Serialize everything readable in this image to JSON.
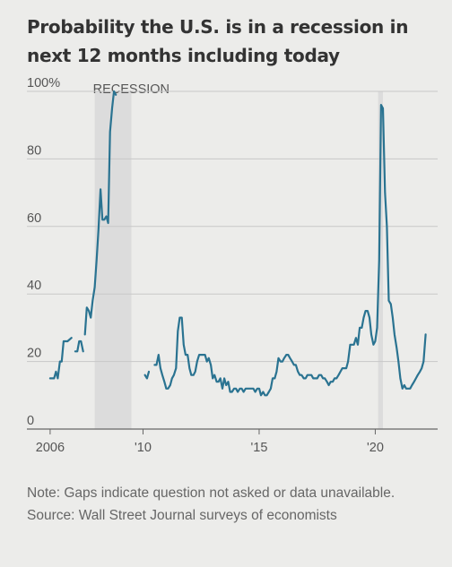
{
  "title": "Probability the U.S. is in a recession in next 12 months including today",
  "note": "Note: Gaps indicate question not asked or data unavailable.",
  "source": "Source: Wall Street Journal surveys of economists",
  "colors": {
    "line": "#2a7391",
    "recession_band": "#dcdcdc",
    "grid": "#c8c8c8",
    "background": "#ececea"
  },
  "chart_data": {
    "type": "line",
    "title": "Probability the U.S. is in a recession in next 12 months including today",
    "ylabel": "",
    "xlabel": "",
    "ylim": [
      0,
      100
    ],
    "xlim": [
      2005.0,
      2022.3
    ],
    "y_ticks": [
      0,
      20,
      40,
      60,
      80,
      100
    ],
    "y_tick_labels": [
      "0",
      "20",
      "40",
      "60",
      "80",
      "100%"
    ],
    "x_ticks": [
      2006,
      2010,
      2015,
      2020
    ],
    "x_tick_labels": [
      "2006",
      "'10",
      "'15",
      "'20"
    ],
    "grid": true,
    "recessions": [
      {
        "label": "RECESSION",
        "start": 2007.92,
        "end": 2009.5
      },
      {
        "label": "",
        "start": 2020.12,
        "end": 2020.33
      }
    ],
    "series": [
      {
        "values": [
          [
            [
              2006.0,
              15
            ],
            [
              2006.17,
              15
            ],
            [
              2006.25,
              17
            ],
            [
              2006.33,
              15
            ],
            [
              2006.42,
              20
            ],
            [
              2006.5,
              20
            ],
            [
              2006.58,
              26
            ],
            [
              2006.67,
              26
            ],
            [
              2006.75,
              26
            ],
            [
              2006.92,
              27
            ]
          ],
          [
            [
              2007.08,
              23
            ],
            [
              2007.17,
              23
            ],
            [
              2007.25,
              26
            ],
            [
              2007.33,
              26
            ],
            [
              2007.42,
              23
            ]
          ],
          [
            [
              2007.5,
              28
            ],
            [
              2007.58,
              36
            ],
            [
              2007.67,
              35
            ],
            [
              2007.75,
              33
            ],
            [
              2007.83,
              38
            ],
            [
              2007.92,
              42
            ],
            [
              2008.0,
              50
            ],
            [
              2008.08,
              59
            ],
            [
              2008.17,
              71
            ],
            [
              2008.25,
              62
            ],
            [
              2008.33,
              62
            ],
            [
              2008.42,
              63
            ],
            [
              2008.5,
              61
            ],
            [
              2008.58,
              88
            ],
            [
              2008.67,
              95
            ],
            [
              2008.75,
              100
            ],
            [
              2008.83,
              99
            ]
          ],
          [
            [
              2010.08,
              16
            ],
            [
              2010.17,
              15
            ],
            [
              2010.25,
              17
            ]
          ],
          [
            [
              2010.5,
              19
            ],
            [
              2010.58,
              19
            ],
            [
              2010.67,
              22
            ],
            [
              2010.75,
              18
            ],
            [
              2010.83,
              16
            ],
            [
              2010.92,
              14
            ],
            [
              2011.0,
              12
            ],
            [
              2011.08,
              12
            ],
            [
              2011.17,
              13
            ],
            [
              2011.25,
              15
            ],
            [
              2011.33,
              16
            ],
            [
              2011.42,
              18
            ],
            [
              2011.5,
              29
            ],
            [
              2011.58,
              33
            ],
            [
              2011.67,
              33
            ],
            [
              2011.75,
              25
            ],
            [
              2011.83,
              22
            ],
            [
              2011.92,
              22
            ],
            [
              2012.0,
              18
            ],
            [
              2012.08,
              16
            ],
            [
              2012.17,
              16
            ],
            [
              2012.25,
              17
            ],
            [
              2012.33,
              20
            ],
            [
              2012.42,
              22
            ],
            [
              2012.5,
              22
            ],
            [
              2012.58,
              22
            ],
            [
              2012.67,
              22
            ],
            [
              2012.75,
              20
            ],
            [
              2012.83,
              21
            ],
            [
              2012.92,
              19
            ],
            [
              2013.0,
              15
            ],
            [
              2013.08,
              16
            ],
            [
              2013.17,
              14
            ],
            [
              2013.25,
              14
            ],
            [
              2013.33,
              15
            ],
            [
              2013.42,
              12
            ],
            [
              2013.5,
              15
            ],
            [
              2013.58,
              13
            ],
            [
              2013.67,
              14
            ],
            [
              2013.75,
              11
            ],
            [
              2013.83,
              11
            ],
            [
              2013.92,
              12
            ],
            [
              2014.0,
              12
            ],
            [
              2014.08,
              11
            ],
            [
              2014.17,
              12
            ],
            [
              2014.25,
              12
            ],
            [
              2014.33,
              11
            ],
            [
              2014.42,
              12
            ],
            [
              2014.5,
              12
            ],
            [
              2014.58,
              12
            ],
            [
              2014.67,
              12
            ],
            [
              2014.75,
              12
            ],
            [
              2014.83,
              11
            ],
            [
              2014.92,
              12
            ],
            [
              2015.0,
              12
            ],
            [
              2015.08,
              10
            ],
            [
              2015.17,
              11
            ],
            [
              2015.25,
              10
            ],
            [
              2015.33,
              10
            ],
            [
              2015.42,
              11
            ],
            [
              2015.5,
              12
            ],
            [
              2015.58,
              15
            ],
            [
              2015.67,
              15
            ],
            [
              2015.75,
              17
            ],
            [
              2015.83,
              21
            ],
            [
              2015.92,
              20
            ],
            [
              2016.0,
              20
            ],
            [
              2016.08,
              21
            ],
            [
              2016.17,
              22
            ],
            [
              2016.25,
              22
            ],
            [
              2016.33,
              21
            ],
            [
              2016.42,
              20
            ],
            [
              2016.5,
              19
            ],
            [
              2016.58,
              19
            ],
            [
              2016.67,
              17
            ],
            [
              2016.75,
              16
            ],
            [
              2016.83,
              16
            ],
            [
              2016.92,
              15
            ],
            [
              2017.0,
              15
            ],
            [
              2017.08,
              16
            ],
            [
              2017.17,
              16
            ],
            [
              2017.25,
              16
            ],
            [
              2017.33,
              15
            ],
            [
              2017.42,
              15
            ],
            [
              2017.5,
              15
            ],
            [
              2017.58,
              16
            ],
            [
              2017.67,
              16
            ],
            [
              2017.75,
              15
            ],
            [
              2017.83,
              15
            ],
            [
              2017.92,
              14
            ],
            [
              2018.0,
              13
            ],
            [
              2018.08,
              14
            ],
            [
              2018.17,
              14
            ],
            [
              2018.25,
              15
            ],
            [
              2018.33,
              15
            ],
            [
              2018.42,
              16
            ],
            [
              2018.5,
              17
            ],
            [
              2018.58,
              18
            ],
            [
              2018.67,
              18
            ],
            [
              2018.75,
              18
            ],
            [
              2018.83,
              20
            ],
            [
              2018.92,
              25
            ],
            [
              2019.0,
              25
            ],
            [
              2019.08,
              25
            ],
            [
              2019.17,
              27
            ],
            [
              2019.25,
              25
            ],
            [
              2019.33,
              30
            ],
            [
              2019.42,
              30
            ],
            [
              2019.5,
              33
            ],
            [
              2019.58,
              35
            ],
            [
              2019.67,
              35
            ],
            [
              2019.75,
              33
            ],
            [
              2019.83,
              28
            ],
            [
              2019.92,
              25
            ],
            [
              2020.0,
              26
            ],
            [
              2020.08,
              30
            ],
            [
              2020.17,
              50
            ],
            [
              2020.25,
              96
            ],
            [
              2020.33,
              95
            ],
            [
              2020.42,
              70
            ],
            [
              2020.5,
              60
            ],
            [
              2020.58,
              38
            ],
            [
              2020.67,
              37
            ],
            [
              2020.75,
              33
            ],
            [
              2020.83,
              28
            ],
            [
              2020.92,
              24
            ],
            [
              2021.0,
              20
            ],
            [
              2021.08,
              15
            ],
            [
              2021.17,
              12
            ],
            [
              2021.25,
              13
            ],
            [
              2021.33,
              12
            ],
            [
              2021.42,
              12
            ],
            [
              2021.5,
              12
            ],
            [
              2021.58,
              13
            ],
            [
              2021.67,
              14
            ],
            [
              2021.75,
              15
            ],
            [
              2021.83,
              16
            ],
            [
              2021.92,
              17
            ],
            [
              2022.0,
              18
            ],
            [
              2022.08,
              20
            ],
            [
              2022.17,
              28
            ]
          ]
        ]
      }
    ]
  }
}
